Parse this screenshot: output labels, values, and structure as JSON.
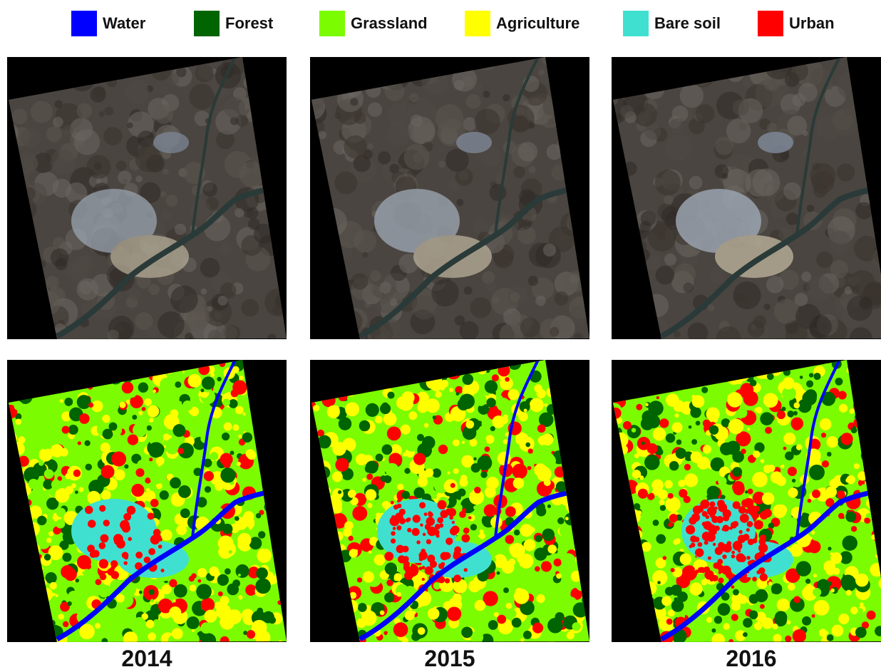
{
  "legend": {
    "items": [
      {
        "label": "Water",
        "color": "#0000ff"
      },
      {
        "label": "Forest",
        "color": "#006400"
      },
      {
        "label": "Grassland",
        "color": "#7cfc00"
      },
      {
        "label": "Agriculture",
        "color": "#ffff00"
      },
      {
        "label": "Bare soil",
        "color": "#40e0d0"
      },
      {
        "label": "Urban",
        "color": "#ff0000"
      }
    ]
  },
  "columns": [
    {
      "year": "2014",
      "satellite_image": "true-color-satellite-image",
      "classified_map": "land-cover-classification-map"
    },
    {
      "year": "2015",
      "satellite_image": "true-color-satellite-image",
      "classified_map": "land-cover-classification-map"
    },
    {
      "year": "2016",
      "satellite_image": "true-color-satellite-image",
      "classified_map": "land-cover-classification-map"
    }
  ],
  "colors": {
    "background": "#ffffff",
    "nodata": "#000000",
    "satellite_terrain": "#4a4540",
    "satellite_river": "#2a3a38",
    "satellite_builtup": "#9aa4b0"
  }
}
